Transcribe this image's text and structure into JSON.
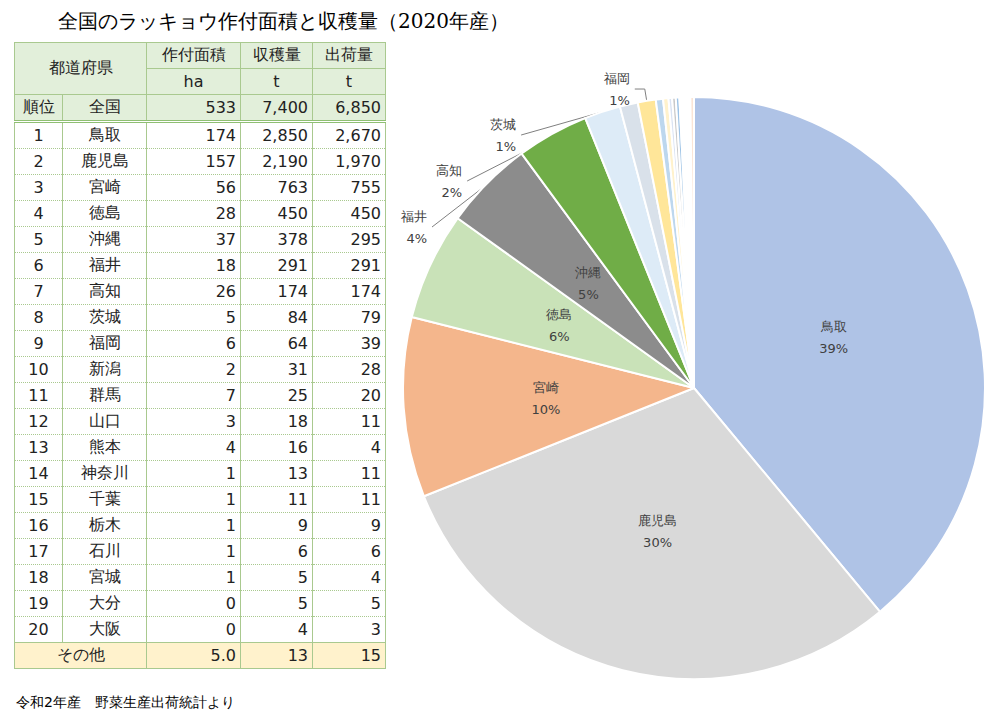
{
  "title": "全国のラッキョウ作付面積と収穫量（2020年産）",
  "source": "令和2年産　野菜生産出荷統計より",
  "table": {
    "header": [
      [
        "都道府県",
        "作付面積",
        "収穫量",
        "出荷量"
      ],
      [
        "ha",
        "t",
        "t"
      ]
    ],
    "total": [
      "順位",
      "全国",
      "533",
      "7,400",
      "6,850"
    ],
    "rows": [
      [
        "1",
        "鳥取",
        "174",
        "2,850",
        "2,670"
      ],
      [
        "2",
        "鹿児島",
        "157",
        "2,190",
        "1,970"
      ],
      [
        "3",
        "宮崎",
        "56",
        "763",
        "755"
      ],
      [
        "4",
        "徳島",
        "28",
        "450",
        "450"
      ],
      [
        "5",
        "沖縄",
        "37",
        "378",
        "295"
      ],
      [
        "6",
        "福井",
        "18",
        "291",
        "291"
      ],
      [
        "7",
        "高知",
        "26",
        "174",
        "174"
      ],
      [
        "8",
        "茨城",
        "5",
        "84",
        "79"
      ],
      [
        "9",
        "福岡",
        "6",
        "64",
        "39"
      ],
      [
        "10",
        "新潟",
        "2",
        "31",
        "28"
      ],
      [
        "11",
        "群馬",
        "7",
        "25",
        "20"
      ],
      [
        "12",
        "山口",
        "3",
        "18",
        "11"
      ],
      [
        "13",
        "熊本",
        "4",
        "16",
        "4"
      ],
      [
        "14",
        "神奈川",
        "1",
        "13",
        "11"
      ],
      [
        "15",
        "千葉",
        "1",
        "11",
        "11"
      ],
      [
        "16",
        "栃木",
        "1",
        "9",
        "9"
      ],
      [
        "17",
        "石川",
        "1",
        "6",
        "6"
      ],
      [
        "18",
        "宮城",
        "1",
        "5",
        "4"
      ],
      [
        "19",
        "大分",
        "0",
        "5",
        "5"
      ],
      [
        "20",
        "大阪",
        "0",
        "4",
        "3"
      ]
    ],
    "other": [
      "その他",
      "5.0",
      "13",
      "15"
    ]
  },
  "chart_data": {
    "type": "pie",
    "categories": [
      "鳥取",
      "鹿児島",
      "宮崎",
      "徳島",
      "沖縄",
      "福井",
      "高知",
      "茨城",
      "福岡",
      null,
      null,
      null,
      null,
      null,
      null,
      null,
      null,
      null,
      null,
      null,
      null
    ],
    "values": [
      39,
      30,
      10,
      6,
      5,
      4,
      2,
      1,
      1,
      0.4,
      0.3,
      0.2,
      0.2,
      0.2,
      0.1,
      0.1,
      0.1,
      0.1,
      0.1,
      0.1,
      0.2
    ],
    "value_labels": [
      "39%",
      "30%",
      "10%",
      "6%",
      "5%",
      "4%",
      "2%",
      "1%",
      "1%",
      null,
      null,
      null,
      null,
      null,
      null,
      null,
      null,
      null,
      null,
      null,
      null
    ],
    "colors": [
      "#afc3e6",
      "#d9d9d9",
      "#f4b68c",
      "#c9e2b8",
      "#8c8c8c",
      "#70ad47",
      "#ddebf7",
      "#d9e1ea",
      "#ffe699",
      "#bdd7ee",
      "#fff2cc",
      "#dae3f3",
      "#c9c9c9",
      "#9dc3e6",
      "#ffd966",
      "#b4c7e7",
      "#e2efda",
      "#a5a5a5",
      "#f8cbad",
      "#d6dce5",
      "#fbe5d6"
    ],
    "data_labels": true
  }
}
